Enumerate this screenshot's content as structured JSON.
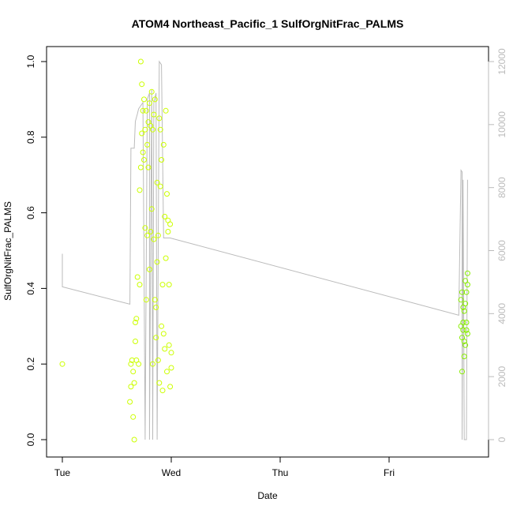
{
  "chart_data": {
    "type": "scatter",
    "title": "ATOM4 Northeast_Pacific_1 SulfOrgNitFrac_PALMS",
    "xlabel": "Date",
    "ylabel": "SulfOrgNitFrac_PALMS",
    "x_ticks": [
      "Tue",
      "Wed",
      "Thu",
      "Fri"
    ],
    "y_ticks": [
      "0.0",
      "0.2",
      "0.4",
      "0.6",
      "0.8",
      "1.0"
    ],
    "y2_ticks": [
      "0",
      "2000",
      "4000",
      "6000",
      "8000",
      "10000",
      "12000"
    ],
    "ylim": [
      0,
      1
    ],
    "y2lim": [
      0,
      12000
    ],
    "xlim_days": [
      0,
      3.7
    ],
    "grid": false,
    "colors": {
      "points_wed": "#ccff00",
      "points_fri": "#88ee00",
      "altitude_line": "#bbbbbb",
      "right_axis": "#bbbbbb"
    },
    "series": [
      {
        "kind": "points",
        "x": [
          0.0,
          0.62,
          0.63,
          0.63,
          0.64,
          0.65,
          0.65,
          0.66,
          0.66,
          0.67,
          0.67,
          0.68,
          0.68,
          0.69,
          0.7,
          0.71,
          0.71,
          0.72,
          0.72,
          0.73,
          0.73,
          0.74,
          0.74,
          0.75,
          0.75,
          0.76,
          0.76,
          0.77,
          0.77,
          0.78,
          0.78,
          0.79,
          0.79,
          0.8,
          0.8,
          0.81,
          0.81,
          0.82,
          0.82,
          0.83,
          0.83,
          0.84,
          0.84,
          0.85,
          0.85,
          0.86,
          0.86,
          0.87,
          0.87,
          0.88,
          0.88,
          0.89,
          0.89,
          0.9,
          0.9,
          0.91,
          0.91,
          0.92,
          0.92,
          0.93,
          0.93,
          0.94,
          0.94,
          0.95,
          0.95,
          0.96,
          0.96,
          0.97,
          0.97,
          0.98,
          0.98,
          0.99,
          0.99,
          1.0,
          1.0
        ],
        "y": [
          0.2,
          0.1,
          0.14,
          0.2,
          0.21,
          0.06,
          0.18,
          0.0,
          0.15,
          0.31,
          0.26,
          0.32,
          0.21,
          0.43,
          0.2,
          0.66,
          0.41,
          1.0,
          0.72,
          0.81,
          0.94,
          0.87,
          0.76,
          0.9,
          0.74,
          0.82,
          0.56,
          0.37,
          0.87,
          0.54,
          0.78,
          0.72,
          0.84,
          0.89,
          0.45,
          0.83,
          0.55,
          0.61,
          0.92,
          0.82,
          0.2,
          0.53,
          0.86,
          0.37,
          0.9,
          0.35,
          0.27,
          0.47,
          0.68,
          0.21,
          0.54,
          0.85,
          0.15,
          0.82,
          0.67,
          0.74,
          0.3,
          0.41,
          0.13,
          0.78,
          0.28,
          0.59,
          0.24,
          0.87,
          0.48,
          0.65,
          0.18,
          0.58,
          0.55,
          0.41,
          0.25,
          0.14,
          0.57,
          0.23,
          0.19
        ],
        "color": "#ccff00"
      },
      {
        "kind": "points",
        "x": [
          3.66,
          3.66,
          3.67,
          3.67,
          3.67,
          3.68,
          3.68,
          3.68,
          3.69,
          3.69,
          3.69,
          3.7,
          3.7,
          3.7,
          3.71,
          3.71,
          3.71,
          3.72,
          3.72,
          3.72
        ],
        "y": [
          0.37,
          0.3,
          0.18,
          0.27,
          0.39,
          0.29,
          0.31,
          0.35,
          0.26,
          0.34,
          0.22,
          0.25,
          0.36,
          0.42,
          0.29,
          0.31,
          0.39,
          0.28,
          0.44,
          0.41
        ],
        "color": "#88ee00"
      },
      {
        "kind": "line",
        "axis": "right",
        "x": [
          0.0,
          0.0,
          0.62,
          0.62,
          0.63,
          0.66,
          0.67,
          0.69,
          0.7,
          0.72,
          0.74,
          0.76,
          0.78,
          0.8,
          0.8,
          0.82,
          0.83,
          0.84,
          0.86,
          0.87,
          0.89,
          0.91,
          0.93,
          0.95,
          0.97,
          0.99,
          0.99,
          0.99,
          0.99,
          3.64,
          3.66,
          3.67,
          3.67,
          3.68,
          3.69,
          3.71,
          3.72
        ],
        "y": [
          5900,
          4850,
          4300,
          4300,
          9250,
          9250,
          10100,
          10350,
          10500,
          10600,
          10700,
          0,
          10800,
          11000,
          0,
          11100,
          0,
          10700,
          11000,
          0,
          12000,
          11900,
          6400,
          6400,
          6400,
          6400,
          6400,
          6400,
          6400,
          3950,
          8550,
          8500,
          0,
          8250,
          0,
          0,
          8250
        ],
        "color": "#bbbbbb"
      }
    ]
  }
}
